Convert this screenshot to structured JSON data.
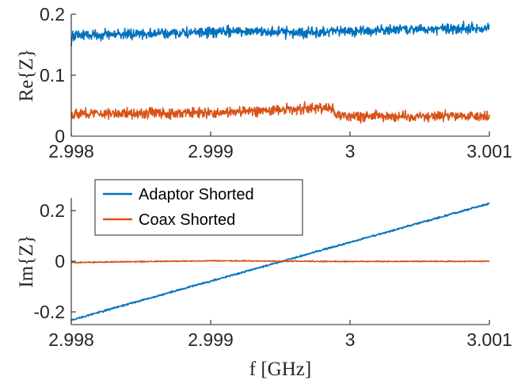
{
  "chart_data": [
    {
      "type": "line",
      "ylabel": "Re{Z}",
      "xlabel": "",
      "xlim": [
        2.998,
        3.001
      ],
      "ylim": [
        0,
        0.2
      ],
      "xticks": [
        2.998,
        2.999,
        3,
        3.001
      ],
      "xtick_labels": [
        "2.998",
        "2.999",
        "3",
        "3.001"
      ],
      "yticks": [
        0,
        0.1,
        0.2
      ],
      "ytick_labels": [
        "0",
        "0.1",
        "0.2"
      ],
      "grid": false,
      "series": [
        {
          "color": "#0072BD",
          "noise": 0.006,
          "x": [
            2.998,
            2.998005,
            2.99803,
            2.9985,
            2.999,
            2.9993,
            2.99955,
            2.9998,
            3.0,
            3.0005,
            3.001
          ],
          "y": [
            0.145,
            0.165,
            0.166,
            0.168,
            0.17,
            0.173,
            0.17,
            0.17,
            0.172,
            0.176,
            0.178
          ]
        },
        {
          "color": "#D95319",
          "noise": 0.006,
          "x": [
            2.998,
            2.9985,
            2.999,
            2.9993,
            2.99955,
            2.99988,
            2.99989,
            3.0,
            3.0005,
            3.001
          ],
          "y": [
            0.037,
            0.038,
            0.038,
            0.041,
            0.044,
            0.047,
            0.034,
            0.033,
            0.033,
            0.034
          ]
        }
      ]
    },
    {
      "type": "line",
      "ylabel": "Im{Z}",
      "xlabel": "f [GHz]",
      "xlim": [
        2.998,
        3.001
      ],
      "ylim": [
        -0.25,
        0.25
      ],
      "xticks": [
        2.998,
        2.999,
        3,
        3.001
      ],
      "xtick_labels": [
        "2.998",
        "2.999",
        "3",
        "3.001"
      ],
      "yticks": [
        -0.2,
        0,
        0.2
      ],
      "ytick_labels": [
        "-0.2",
        "0",
        "0.2"
      ],
      "grid": false,
      "legend": "upper-left",
      "series": [
        {
          "name": "Adaptor Shorted",
          "color": "#0072BD",
          "noise": 0.0025,
          "x": [
            2.998,
            3.001
          ],
          "y": [
            -0.232,
            0.228
          ]
        },
        {
          "name": "Coax Shorted",
          "color": "#D95319",
          "noise": 0.0015,
          "x": [
            2.998,
            2.999,
            3.0,
            3.001
          ],
          "y": [
            -0.005,
            0.002,
            -0.001,
            0.0
          ]
        }
      ]
    }
  ]
}
